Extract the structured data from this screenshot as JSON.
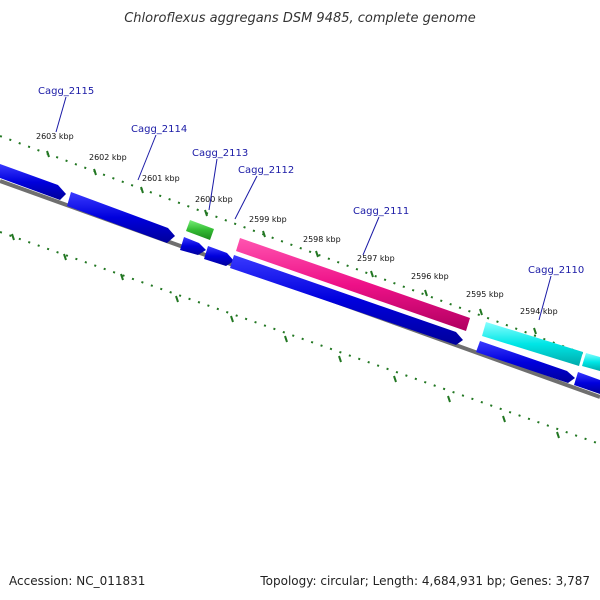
{
  "title": "Chloroflexus aggregans DSM 9485, complete genome",
  "footer": {
    "accession": "Accession: NC_011831",
    "summary": "Topology: circular; Length: 4,684,931 bp; Genes: 3,787"
  },
  "colors": {
    "forward_strand": "#1010e0",
    "reverse_strand": "#1010e0",
    "green_gene": "#33bb33",
    "pink_gene": "#ee1188",
    "cyan_gene": "#00e6e6",
    "backbone": "#777777",
    "ticks": "#227722",
    "label_leader": "#1a1aa6"
  },
  "ruler_labels": [
    "2603 kbp",
    "2602 kbp",
    "2601 kbp",
    "2600 kbp",
    "2599 kbp",
    "2598 kbp",
    "2597 kbp",
    "2596 kbp",
    "2595 kbp",
    "2594 kbp"
  ],
  "gene_labels": [
    "Cagg_2115",
    "Cagg_2114",
    "Cagg_2113",
    "Cagg_2112",
    "Cagg_2111",
    "Cagg_2110"
  ]
}
